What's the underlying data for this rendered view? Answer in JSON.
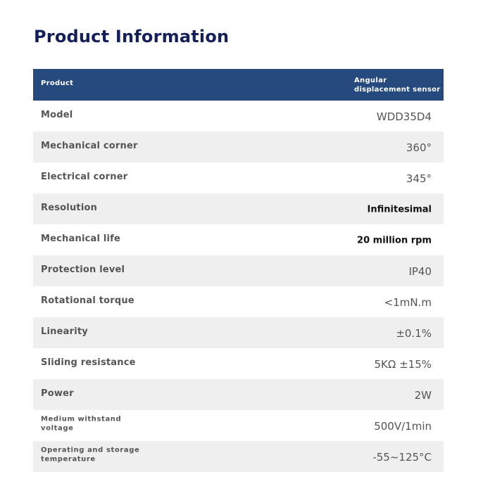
{
  "page_title": "Product Information",
  "table": {
    "header": {
      "left": "Product",
      "right": "Angular displacement sensor"
    },
    "rows": [
      {
        "label": "Model",
        "value": "WDD35D4"
      },
      {
        "label": "Mechanical corner",
        "value": "360°"
      },
      {
        "label": "Electrical corner",
        "value": "345°"
      },
      {
        "label": "Resolution",
        "value": "Infinitesimal"
      },
      {
        "label": "Mechanical life",
        "value": "20 million rpm"
      },
      {
        "label": "Protection level",
        "value": "IP40"
      },
      {
        "label": "Rotational torque",
        "value": "<1mN.m"
      },
      {
        "label": "Linearity",
        "value": "±0.1%"
      },
      {
        "label": "Sliding resistance",
        "value": "5KΩ ±15%"
      },
      {
        "label": "Power",
        "value": "2W"
      },
      {
        "label": "Medium withstand voltage",
        "value": "500V/1min"
      },
      {
        "label": "Operating and storage temperature",
        "value": "-55~125°C"
      }
    ]
  },
  "colors": {
    "title": "#15205a",
    "header_bg": "#264a7e",
    "alt_row_bg": "#efefef"
  }
}
